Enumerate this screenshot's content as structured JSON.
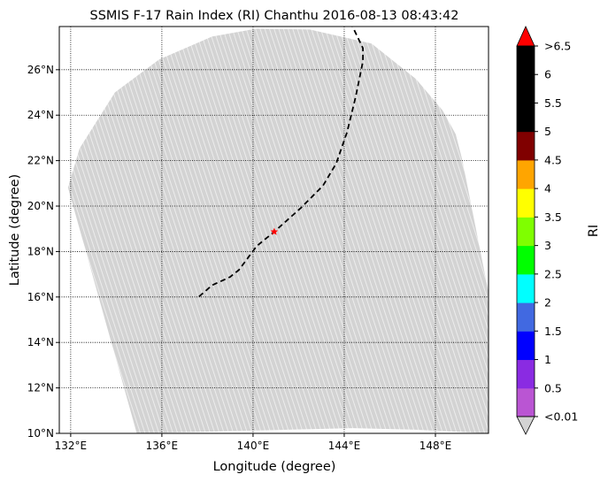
{
  "chart_data": {
    "type": "map",
    "title": "SSMIS F-17 Rain Index (RI) Chanthu 2016-08-13 08:43:42",
    "xlabel": "Longitude (degree)",
    "ylabel": "Latitude (degree)",
    "xlim": [
      131.5,
      150.33
    ],
    "ylim": [
      10,
      27.9
    ],
    "xticks": [
      132,
      136,
      140,
      144,
      148
    ],
    "xtick_labels": [
      "132°E",
      "136°E",
      "140°E",
      "144°E",
      "148°E"
    ],
    "yticks": [
      10,
      12,
      14,
      16,
      18,
      20,
      22,
      24,
      26
    ],
    "ytick_labels": [
      "10°N",
      "12°N",
      "14°N",
      "16°N",
      "18°N",
      "20°N",
      "22°N",
      "24°N",
      "26°N"
    ],
    "grid": true,
    "swath_color": "#d3d3d3",
    "swath_polygon": [
      [
        131.88,
        20.82
      ],
      [
        132.39,
        22.54
      ],
      [
        133.94,
        25.0
      ],
      [
        135.88,
        26.45
      ],
      [
        138.21,
        27.46
      ],
      [
        140.16,
        27.81
      ],
      [
        142.49,
        27.77
      ],
      [
        145.2,
        27.15
      ],
      [
        147.15,
        25.59
      ],
      [
        148.31,
        24.22
      ],
      [
        148.89,
        23.16
      ],
      [
        149.17,
        22.07
      ],
      [
        150.33,
        16.2
      ],
      [
        150.33,
        10
      ],
      [
        147.15,
        10.16
      ],
      [
        144.4,
        10.23
      ],
      [
        134.9,
        10
      ]
    ],
    "track": [
      [
        137.63,
        16.02
      ],
      [
        138.21,
        16.52
      ],
      [
        138.99,
        16.88
      ],
      [
        139.38,
        17.19
      ],
      [
        140.16,
        18.24
      ],
      [
        140.93,
        18.87
      ],
      [
        142.1,
        19.92
      ],
      [
        143.07,
        20.9
      ],
      [
        143.65,
        21.88
      ],
      [
        144.12,
        23.24
      ],
      [
        144.5,
        24.8
      ],
      [
        144.82,
        26.37
      ],
      [
        144.82,
        26.95
      ],
      [
        144.35,
        27.93
      ]
    ],
    "storm_center": [
      140.93,
      18.87
    ],
    "storm_center_color": "#ff0000",
    "colorbar": {
      "label": "RI",
      "tick_labels": [
        "<0.01",
        "0.5",
        "1",
        "1.5",
        "2",
        "2.5",
        "3",
        "3.5",
        "4",
        "4.5",
        "5",
        "5.5",
        "6",
        ">6.5"
      ],
      "bins": [
        "#ba55d3",
        "#8a2be2",
        "#0000ff",
        "#4169e1",
        "#00ffff",
        "#00ff00",
        "#7fff00",
        "#ffff00",
        "#ffa500",
        "#800000",
        "#000000",
        "#000000",
        "#000000"
      ],
      "over_color": "#ff0000",
      "under_color": "#d3d3d3"
    }
  }
}
